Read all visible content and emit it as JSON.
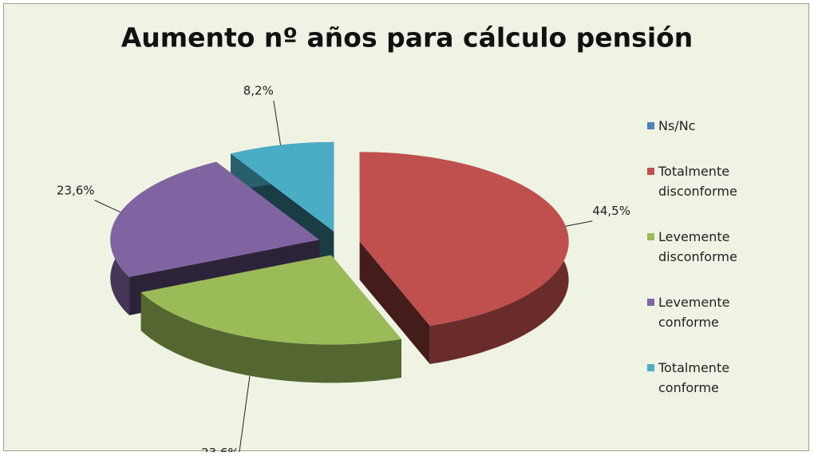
{
  "chart_data": {
    "type": "pie3d",
    "title": "Aumento nº años para cálculo pensión",
    "categories": [
      "Ns/Nc",
      "Totalmente disconforme",
      "Levemente disconforme",
      "Levemente conforme",
      "Totalmente conforme"
    ],
    "values": [
      0,
      44.5,
      23.6,
      23.6,
      8.2
    ],
    "value_labels": [
      null,
      "44,5%",
      "23,6%",
      "23,6%",
      "8,2%"
    ],
    "colors": [
      "#4f81bd",
      "#c0504d",
      "#9bbb59",
      "#8064a2",
      "#4bacc6"
    ],
    "legend": "right"
  }
}
